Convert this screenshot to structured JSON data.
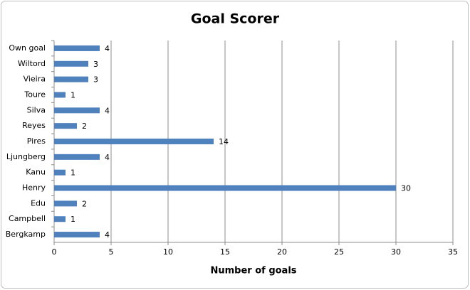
{
  "chart_data": {
    "type": "hbar",
    "title": "Goal Scorer",
    "x_label": "Number of goals",
    "categories": [
      "Own goal",
      "Wiltord",
      "Vieira",
      "Toure",
      "Silva",
      "Reyes",
      "Pires",
      "Ljungberg",
      "Kanu",
      "Henry",
      "Edu",
      "Campbell",
      "Bergkamp"
    ],
    "values": [
      4,
      3,
      3,
      1,
      4,
      2,
      14,
      4,
      1,
      30,
      2,
      1,
      4
    ],
    "color": "#4f81bd",
    "xlim": [
      0,
      35
    ],
    "xticks": [
      0,
      5,
      10,
      15,
      20,
      25,
      30,
      35
    ],
    "grid": true
  }
}
